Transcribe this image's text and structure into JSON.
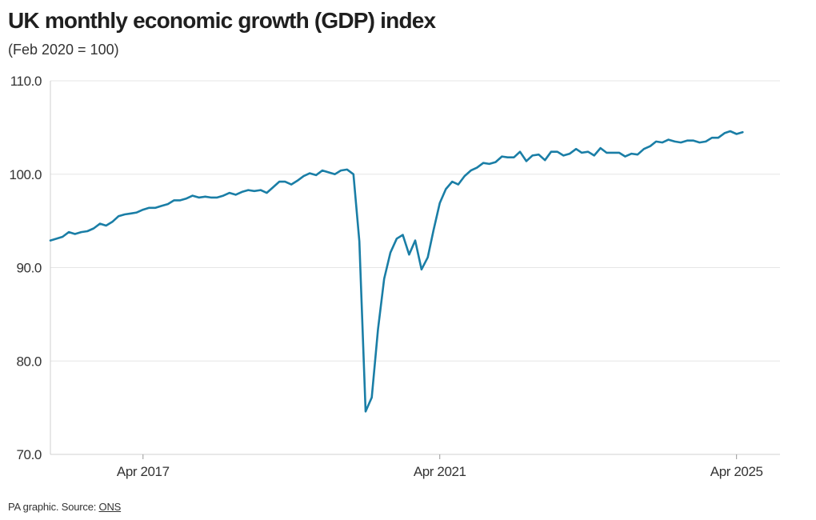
{
  "chart_data": {
    "type": "line",
    "title": "UK monthly economic growth (GDP) index",
    "subtitle": "(Feb 2020 = 100)",
    "xlabel": "",
    "ylabel": "",
    "ylim": [
      70,
      110
    ],
    "yticks": [
      70,
      80,
      90,
      100,
      110
    ],
    "ytick_labels": [
      "70.0",
      "80.0",
      "90.0",
      "100.0",
      "110.0"
    ],
    "xticks": [
      "2017-04",
      "2021-04",
      "2025-04"
    ],
    "xtick_labels": [
      "Apr 2017",
      "Apr 2021",
      "Apr 2025"
    ],
    "grid": "horizontal",
    "line_color": "#1a7ea6",
    "series": [
      {
        "x": [
          "2016-01",
          "2016-02",
          "2016-03",
          "2016-04",
          "2016-05",
          "2016-06",
          "2016-07",
          "2016-08",
          "2016-09",
          "2016-10",
          "2016-11",
          "2016-12",
          "2017-01",
          "2017-02",
          "2017-03",
          "2017-04",
          "2017-05",
          "2017-06",
          "2017-07",
          "2017-08",
          "2017-09",
          "2017-10",
          "2017-11",
          "2017-12",
          "2018-01",
          "2018-02",
          "2018-03",
          "2018-04",
          "2018-05",
          "2018-06",
          "2018-07",
          "2018-08",
          "2018-09",
          "2018-10",
          "2018-11",
          "2018-12",
          "2019-01",
          "2019-02",
          "2019-03",
          "2019-04",
          "2019-05",
          "2019-06",
          "2019-07",
          "2019-08",
          "2019-09",
          "2019-10",
          "2019-11",
          "2019-12",
          "2020-01",
          "2020-02",
          "2020-03",
          "2020-04",
          "2020-05",
          "2020-06",
          "2020-07",
          "2020-08",
          "2020-09",
          "2020-10",
          "2020-11",
          "2020-12",
          "2021-01",
          "2021-02",
          "2021-03",
          "2021-04",
          "2021-05",
          "2021-06",
          "2021-07",
          "2021-08",
          "2021-09",
          "2021-10",
          "2021-11",
          "2021-12",
          "2022-01",
          "2022-02",
          "2022-03",
          "2022-04",
          "2022-05",
          "2022-06",
          "2022-07",
          "2022-08",
          "2022-09",
          "2022-10",
          "2022-11",
          "2022-12",
          "2023-01",
          "2023-02",
          "2023-03",
          "2023-04",
          "2023-05",
          "2023-06",
          "2023-07",
          "2023-08",
          "2023-09",
          "2023-10",
          "2023-11",
          "2023-12",
          "2024-01",
          "2024-02",
          "2024-03",
          "2024-04",
          "2024-05",
          "2024-06",
          "2024-07",
          "2024-08",
          "2024-09",
          "2024-10",
          "2024-11",
          "2024-12",
          "2025-01",
          "2025-02",
          "2025-03",
          "2025-04",
          "2025-05"
        ],
        "values": [
          92.9,
          93.1,
          93.3,
          93.8,
          93.6,
          93.8,
          93.9,
          94.2,
          94.7,
          94.5,
          94.9,
          95.5,
          95.7,
          95.8,
          95.9,
          96.2,
          96.4,
          96.4,
          96.6,
          96.8,
          97.2,
          97.2,
          97.4,
          97.7,
          97.5,
          97.6,
          97.5,
          97.5,
          97.7,
          98.0,
          97.8,
          98.1,
          98.3,
          98.2,
          98.3,
          98.0,
          98.6,
          99.2,
          99.2,
          98.9,
          99.3,
          99.8,
          100.1,
          99.9,
          100.4,
          100.2,
          100.0,
          100.4,
          100.5,
          100.0,
          92.8,
          74.6,
          76.1,
          83.4,
          88.8,
          91.6,
          93.1,
          93.5,
          91.4,
          92.9,
          89.8,
          91.1,
          94.0,
          96.9,
          98.4,
          99.2,
          98.9,
          99.8,
          100.4,
          100.7,
          101.2,
          101.1,
          101.3,
          101.9,
          101.8,
          101.8,
          102.4,
          101.4,
          102.0,
          102.1,
          101.5,
          102.4,
          102.4,
          102.0,
          102.2,
          102.7,
          102.3,
          102.4,
          102.0,
          102.8,
          102.3,
          102.3,
          102.3,
          101.9,
          102.2,
          102.1,
          102.7,
          103.0,
          103.5,
          103.4,
          103.7,
          103.5,
          103.4,
          103.6,
          103.6,
          103.4,
          103.5,
          103.9,
          103.9,
          104.4,
          104.6,
          104.3,
          104.5
        ]
      }
    ]
  },
  "footer": {
    "prefix": "PA graphic. Source: ",
    "source": "ONS"
  }
}
